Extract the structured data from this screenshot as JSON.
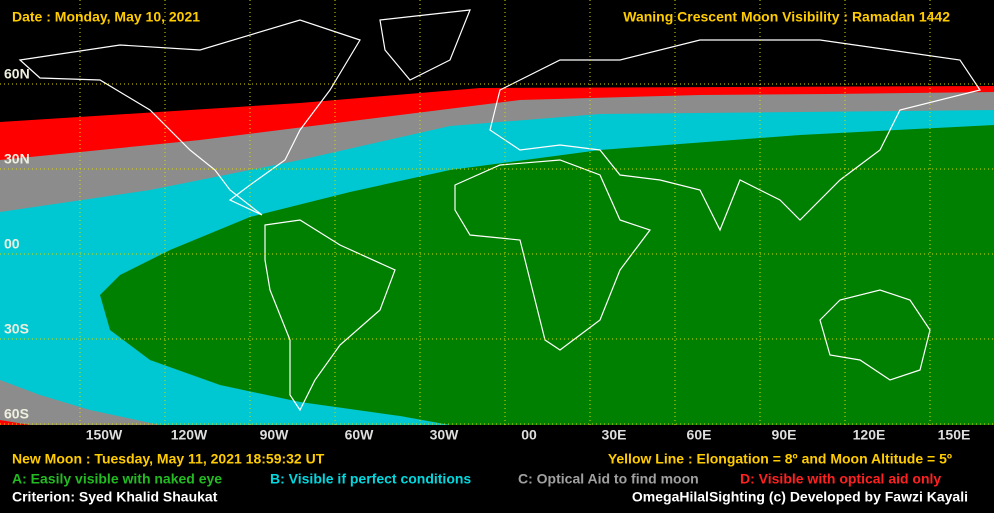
{
  "header": {
    "date": "Date : Monday, May 10, 2021",
    "title": "Waning Crescent Moon Visibility : Ramadan 1442"
  },
  "map": {
    "latitude_labels": [
      "60N",
      "30N",
      "00",
      "30S",
      "60S"
    ],
    "longitude_labels": [
      "150W",
      "120W",
      "90W",
      "60W",
      "30W",
      "00",
      "30E",
      "60E",
      "90E",
      "120E",
      "150E"
    ]
  },
  "footer": {
    "new_moon": "New Moon : Tuesday, May 11, 2021  18:59:32  UT",
    "yellow_line": "Yellow Line : Elongation = 8º  and Moon Altitude = 5º",
    "criterion": "Criterion: Syed Khalid Shaukat",
    "credit": "OmegaHilalSighting  (c)  Developed by Fawzi Kayali"
  },
  "legend": [
    "A: Easily visible with naked eye",
    "B: Visible if perfect conditions",
    "C: Optical Aid to find moon",
    "D: Visible with optical aid only"
  ]
}
